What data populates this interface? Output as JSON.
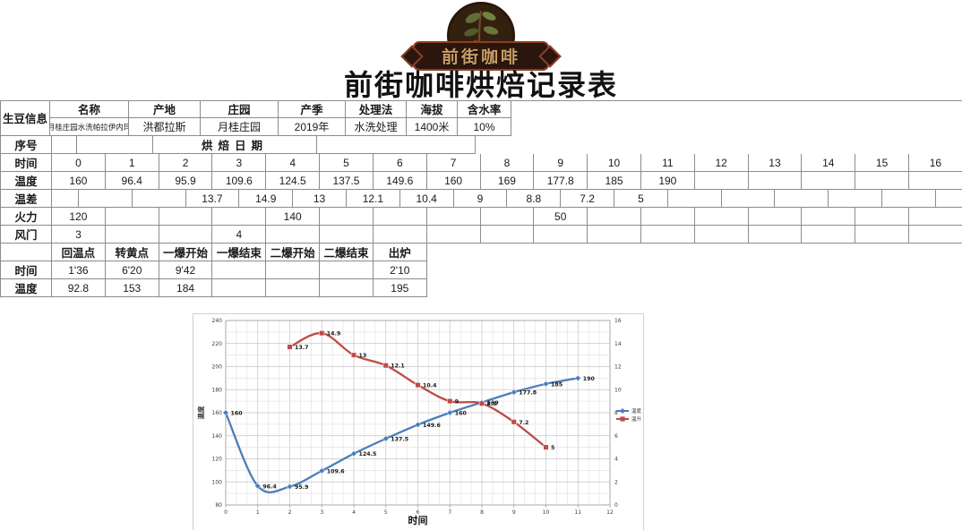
{
  "logo": {
    "brand": "前街咖啡"
  },
  "title": "前街咖啡烘焙记录表",
  "info": {
    "label": "生豆信息",
    "headers": [
      "名称",
      "产地",
      "庄园",
      "产季",
      "处理法",
      "海拔",
      "含水率"
    ],
    "values": [
      "月桂庄园水洗帕拉伊内玛",
      "洪都拉斯",
      "月桂庄园",
      "2019年",
      "水洗处理",
      "1400米",
      "10%"
    ]
  },
  "grid": {
    "serial": {
      "label": "序号",
      "roast_date": "烘焙日期"
    },
    "time": {
      "label": "时间",
      "values": [
        "0",
        "1",
        "2",
        "3",
        "4",
        "5",
        "6",
        "7",
        "8",
        "9",
        "10",
        "11",
        "12",
        "13",
        "14",
        "15",
        "16"
      ]
    },
    "temp": {
      "label": "温度",
      "values": [
        "160",
        "96.4",
        "95.9",
        "109.6",
        "124.5",
        "137.5",
        "149.6",
        "160",
        "169",
        "177.8",
        "185",
        "190",
        "",
        "",
        "",
        "",
        ""
      ]
    },
    "delta": {
      "label": "温差",
      "values": [
        "",
        "",
        "13.7",
        "14.9",
        "13",
        "12.1",
        "10.4",
        "9",
        "8.8",
        "7.2",
        "5",
        "",
        "",
        "",
        "",
        ""
      ]
    },
    "fire": {
      "label": "火力",
      "values": [
        "120",
        "",
        "",
        "",
        "140",
        "",
        "",
        "",
        "",
        "50",
        "",
        "",
        "",
        "",
        "",
        "",
        ""
      ]
    },
    "damper": {
      "label": "风门",
      "values": [
        "3",
        "",
        "",
        "4",
        "",
        "",
        "",
        "",
        "",
        "",
        "",
        "",
        "",
        "",
        "",
        "",
        ""
      ]
    }
  },
  "events": {
    "corner": "",
    "headers": [
      "回温点",
      "转黄点",
      "一爆开始",
      "一爆结束",
      "二爆开始",
      "二爆结束",
      "出炉"
    ],
    "time_label": "时间",
    "time_values": [
      "1'36",
      "6'20",
      "9'42",
      "",
      "",
      "",
      "2'10"
    ],
    "temp_label": "温度",
    "temp_values": [
      "92.8",
      "153",
      "184",
      "",
      "",
      "",
      "195"
    ]
  },
  "chart_data": {
    "type": "line",
    "title": "",
    "xlabel": "时间",
    "ylabel_left": "温度",
    "x_range": [
      0,
      12
    ],
    "x_tick_step": 1,
    "y_left_range": [
      80,
      240
    ],
    "y_left_step": 20,
    "y_right_range": [
      0,
      16
    ],
    "y_right_step": 2,
    "grid": true,
    "legend_position": "right",
    "series": [
      {
        "name": "温度",
        "axis": "left",
        "color": "#4a7ebb",
        "marker": "diamond",
        "x": [
          0,
          1,
          2,
          3,
          4,
          5,
          6,
          7,
          8,
          9,
          10,
          11
        ],
        "values": [
          160,
          96.4,
          95.9,
          109.6,
          124.5,
          137.5,
          149.6,
          160,
          169,
          177.8,
          185,
          190
        ]
      },
      {
        "name": "温升",
        "axis": "right",
        "color": "#bf4b47",
        "marker": "square",
        "x": [
          2,
          3,
          4,
          5,
          6,
          7,
          8,
          9,
          10
        ],
        "values": [
          13.7,
          14.9,
          13,
          12.1,
          10.4,
          9,
          8.8,
          7.2,
          5
        ]
      }
    ]
  }
}
